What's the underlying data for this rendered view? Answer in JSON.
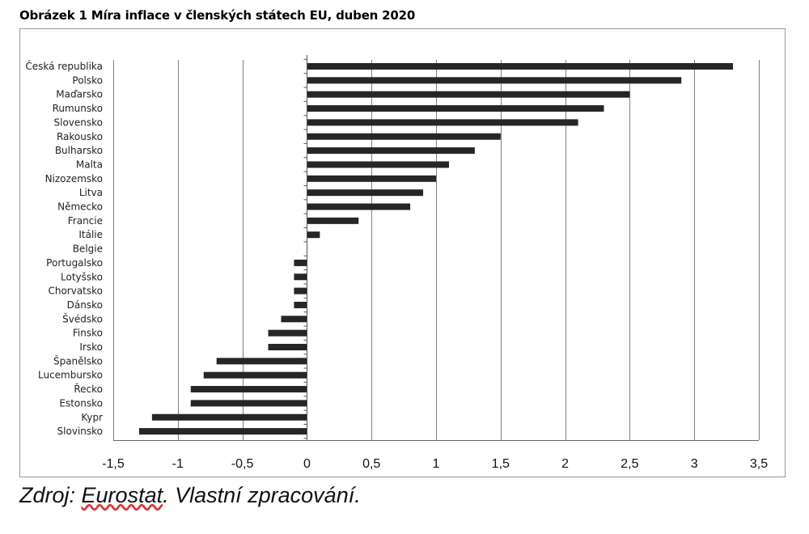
{
  "title": "Obrázek 1 Míra inflace v členských státech EU, duben 2020",
  "source": {
    "prefix": "Zdroj: ",
    "link": "Eurostat",
    "suffix": ". Vlastní zpracování."
  },
  "chart_data": {
    "type": "bar",
    "orientation": "horizontal",
    "categories": [
      "Česká republika",
      "Polsko",
      "Maďarsko",
      "Rumunsko",
      "Slovensko",
      "Rakousko",
      "Bulharsko",
      "Malta",
      "Nizozemsko",
      "Litva",
      "Německo",
      "Francie",
      "Itálie",
      "Belgie",
      "Portugalsko",
      "Lotyšsko",
      "Chorvatsko",
      "Dánsko",
      "Švédsko",
      "Finsko",
      "Irsko",
      "Španělsko",
      "Lucembursko",
      "Řecko",
      "Estonsko",
      "Kypr",
      "Slovinsko"
    ],
    "values": [
      3.3,
      2.9,
      2.5,
      2.3,
      2.1,
      1.5,
      1.3,
      1.1,
      1.0,
      0.9,
      0.8,
      0.4,
      0.1,
      0.0,
      -0.1,
      -0.1,
      -0.1,
      -0.1,
      -0.2,
      -0.3,
      -0.3,
      -0.7,
      -0.8,
      -0.9,
      -0.9,
      -1.2,
      -1.3
    ],
    "xlim": [
      -1.5,
      3.5
    ],
    "xticks": [
      -1.5,
      -1,
      -0.5,
      0,
      0.5,
      1,
      1.5,
      2,
      2.5,
      3,
      3.5
    ],
    "xtick_labels": [
      "-1,5",
      "-1",
      "-0,5",
      "0",
      "0,5",
      "1",
      "1,5",
      "2",
      "2,5",
      "3",
      "3,5"
    ],
    "grid": "vertical",
    "bar_color": "#262626",
    "grid_color": "#808080"
  }
}
